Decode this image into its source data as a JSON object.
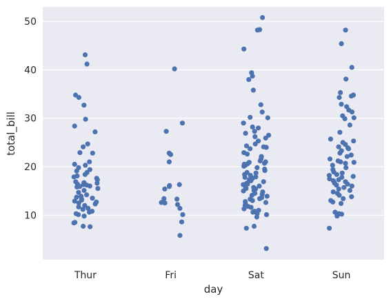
{
  "chart_data": {
    "type": "scatter",
    "style": "strip",
    "xlabel": "day",
    "ylabel": "total_bill",
    "categories": [
      "Thur",
      "Fri",
      "Sat",
      "Sun"
    ],
    "yticks": [
      10,
      20,
      30,
      40,
      50
    ],
    "ylim": [
      0.8,
      53.0
    ],
    "grid": true,
    "background_color": "#eaeaf2",
    "grid_color": "#ffffff",
    "point_color": "#4c72b0",
    "series": [
      {
        "category": "Thur",
        "values": [
          43.1,
          41.2,
          34.8,
          34.3,
          32.7,
          29.8,
          28.4,
          27.2,
          24.7,
          24.1,
          22.9,
          22.8,
          21.0,
          20.5,
          20.3,
          19.8,
          19.4,
          19.1,
          18.8,
          18.4,
          18.1,
          17.9,
          17.6,
          17.3,
          16.9,
          16.7,
          16.6,
          16.4,
          16.3,
          16.2,
          16.0,
          15.9,
          15.8,
          15.5,
          15.1,
          14.7,
          14.2,
          13.9,
          13.7,
          13.5,
          13.3,
          13.1,
          12.9,
          12.7,
          12.5,
          12.3,
          12.0,
          11.7,
          11.4,
          11.2,
          10.8,
          10.6,
          10.3,
          10.1,
          9.8,
          8.5,
          8.4,
          7.7,
          7.6
        ]
      },
      {
        "category": "Fri",
        "values": [
          40.2,
          29.0,
          27.3,
          22.8,
          22.5,
          21.0,
          16.3,
          16.1,
          15.9,
          15.4,
          13.4,
          13.3,
          12.6,
          12.5,
          12.2,
          11.4,
          10.1,
          8.6,
          5.8
        ]
      },
      {
        "category": "Sat",
        "values": [
          50.8,
          48.3,
          48.2,
          44.3,
          39.4,
          38.7,
          38.0,
          35.8,
          32.8,
          31.3,
          30.2,
          30.1,
          29.0,
          28.2,
          28.0,
          27.3,
          26.9,
          26.5,
          26.2,
          25.9,
          25.3,
          24.7,
          24.3,
          24.1,
          24.0,
          23.7,
          22.9,
          22.6,
          22.1,
          21.7,
          21.2,
          21.0,
          20.9,
          20.7,
          20.6,
          20.5,
          20.3,
          20.1,
          19.8,
          19.5,
          19.2,
          18.8,
          18.7,
          18.4,
          18.2,
          17.9,
          17.8,
          17.6,
          17.3,
          17.1,
          16.9,
          16.6,
          16.4,
          16.3,
          16.0,
          15.8,
          15.7,
          15.5,
          15.4,
          15.1,
          15.0,
          14.8,
          14.5,
          14.3,
          14.1,
          13.9,
          13.6,
          13.4,
          13.3,
          13.0,
          12.8,
          12.6,
          12.3,
          12.0,
          11.8,
          11.6,
          11.3,
          11.0,
          10.8,
          10.6,
          10.3,
          10.1,
          9.6,
          7.7,
          7.3,
          3.1
        ]
      },
      {
        "category": "Sun",
        "values": [
          48.2,
          45.4,
          40.5,
          38.1,
          35.3,
          34.8,
          34.6,
          34.3,
          32.9,
          32.4,
          31.7,
          31.3,
          30.5,
          30.1,
          29.9,
          28.6,
          27.1,
          25.7,
          25.3,
          25.0,
          24.6,
          24.1,
          23.9,
          23.7,
          23.3,
          22.8,
          22.4,
          22.1,
          21.6,
          21.2,
          21.0,
          20.9,
          20.7,
          20.3,
          19.8,
          19.4,
          18.9,
          18.7,
          18.4,
          18.2,
          18.0,
          17.8,
          17.5,
          17.3,
          17.1,
          16.9,
          16.6,
          16.4,
          16.2,
          16.0,
          15.7,
          15.4,
          15.1,
          14.8,
          14.5,
          14.1,
          13.8,
          13.4,
          13.0,
          12.7,
          12.4,
          10.6,
          10.3,
          10.2,
          9.8,
          7.3
        ]
      }
    ]
  }
}
